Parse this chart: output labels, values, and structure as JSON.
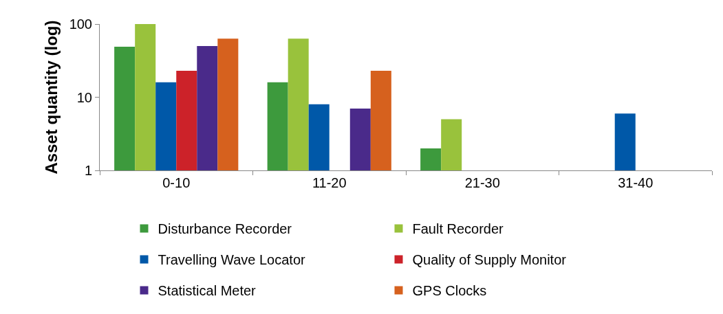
{
  "chart_data": {
    "type": "bar",
    "ylabel": "Asset quantity (log)",
    "categories": [
      "0-10",
      "11-20",
      "21-30",
      "31-40"
    ],
    "series": [
      {
        "name": "Disturbance Recorder",
        "color": "#3d9a3d",
        "values": [
          49,
          16,
          2,
          null
        ]
      },
      {
        "name": "Fault Recorder",
        "color": "#99c23c",
        "values": [
          100,
          63,
          5,
          null
        ]
      },
      {
        "name": "Travelling Wave Locator",
        "color": "#0058a8",
        "values": [
          16,
          8,
          null,
          6
        ]
      },
      {
        "name": "Quality of Supply Monitor",
        "color": "#cc2229",
        "values": [
          23,
          null,
          null,
          null
        ]
      },
      {
        "name": "Statistical Meter",
        "color": "#4a2a8a",
        "values": [
          50,
          7,
          null,
          null
        ]
      },
      {
        "name": "GPS Clocks",
        "color": "#d6611e",
        "values": [
          63,
          23,
          null,
          null
        ]
      }
    ],
    "log": "y",
    "ylim": [
      1,
      100
    ],
    "yticks": [
      1,
      10,
      100
    ],
    "grid": false,
    "legend": "bottom"
  }
}
